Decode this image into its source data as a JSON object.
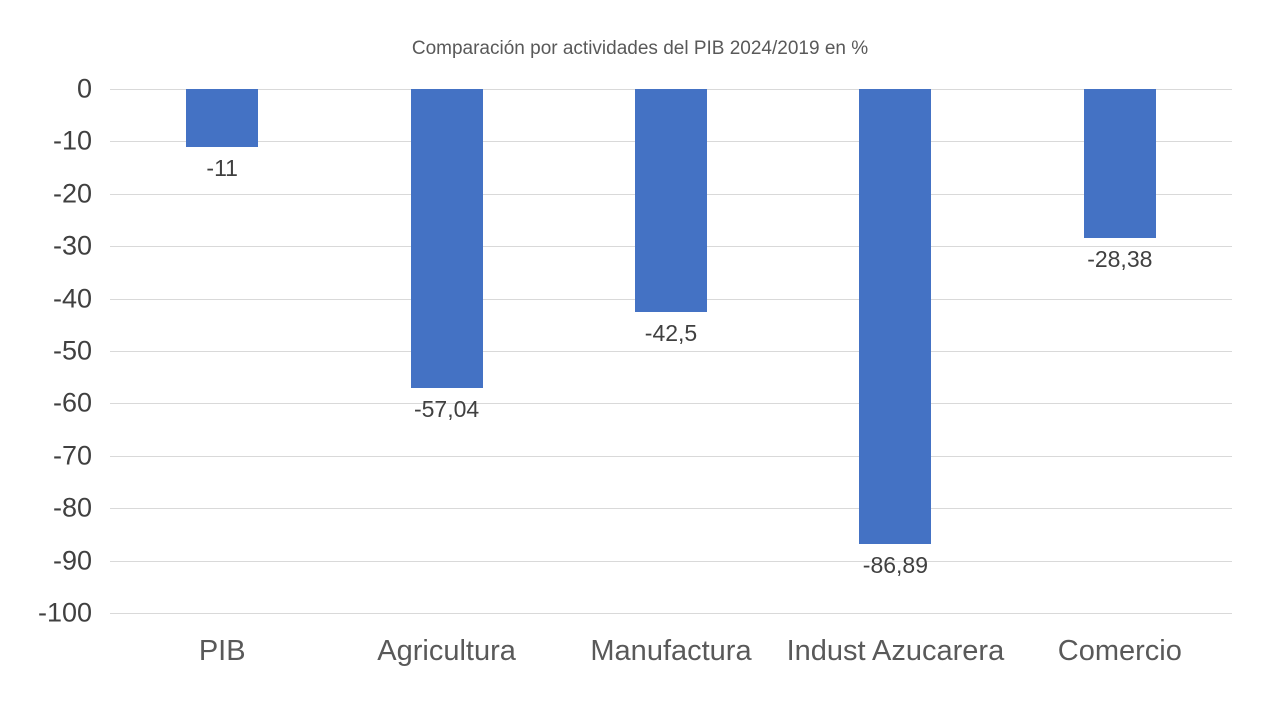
{
  "chart_data": {
    "type": "bar",
    "title": "Comparación por actividades del PIB 2024/2019 en %",
    "categories": [
      "PIB",
      "Agricultura",
      "Manufactura",
      "Indust Azucarera",
      "Comercio"
    ],
    "values": [
      -11,
      -57.04,
      -42.5,
      -86.89,
      -28.38
    ],
    "data_labels": [
      "-11",
      "-57,04",
      "-42,5",
      "-86,89",
      "-28,38"
    ],
    "y_ticks": [
      0,
      -10,
      -20,
      -30,
      -40,
      -50,
      -60,
      -70,
      -80,
      -90,
      -100
    ],
    "y_tick_labels": [
      "0",
      "-10",
      "-20",
      "-30",
      "-40",
      "-50",
      "-60",
      "-70",
      "-80",
      "-90",
      "-100"
    ],
    "ylim": [
      -100,
      0
    ],
    "xlabel": "",
    "ylabel": "",
    "grid": true,
    "legend": "none",
    "colors": {
      "bar": "#4472C4",
      "gridline": "#D9D9D9",
      "tick_text": "#404040",
      "category_text": "#595959",
      "title_text": "#595959",
      "background": "#FFFFFF"
    }
  }
}
